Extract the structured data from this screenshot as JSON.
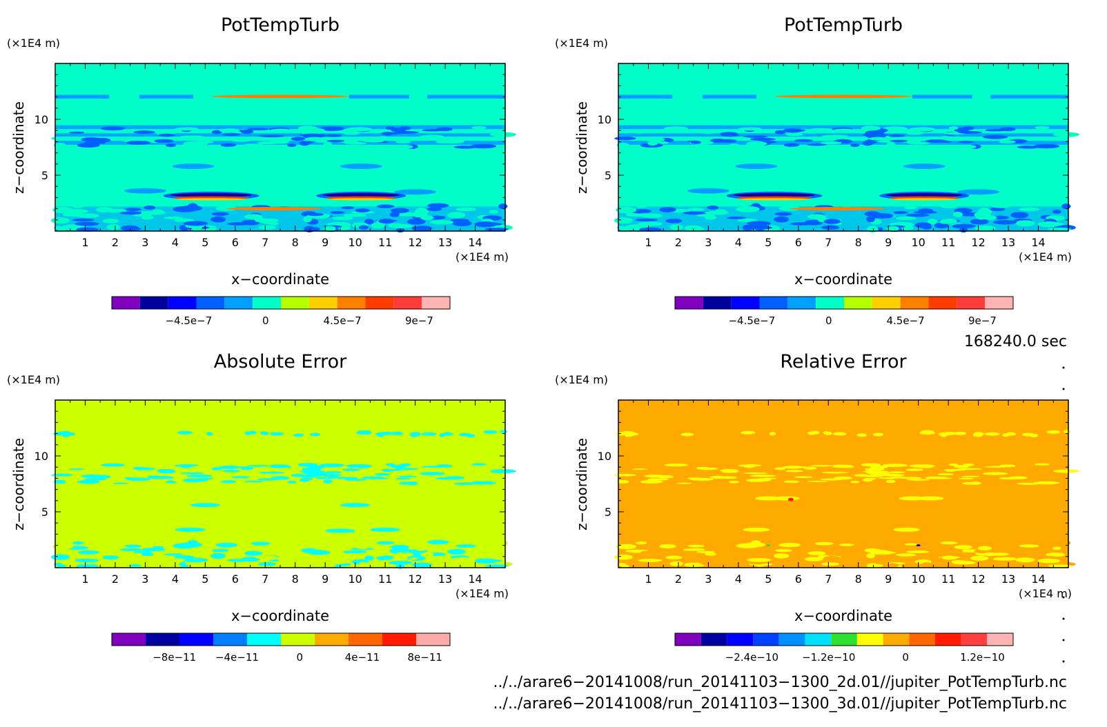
{
  "panels": [
    {
      "title": "PotTempTurb",
      "unit": "(×1E4 m)",
      "xlabel": "x−coordinate",
      "ylabel": "z−coordinate",
      "xunit": "(×1E4 m)",
      "field": "turb",
      "colorbar": {
        "colors": [
          "#7f00bf",
          "#00009f",
          "#0000ff",
          "#0060ff",
          "#00a0ff",
          "#00ffc8",
          "#b4ff00",
          "#ffd000",
          "#ff8000",
          "#ff3c00",
          "#ff3c3c",
          "#ffb4b4"
        ],
        "tick_labels": [
          "−4.5e−7",
          "0",
          "4.5e−7",
          "9e−7"
        ]
      }
    },
    {
      "title": "PotTempTurb",
      "unit": "(×1E4 m)",
      "xlabel": "x−coordinate",
      "ylabel": "z−coordinate",
      "xunit": "(×1E4 m)",
      "field": "turb",
      "colorbar": {
        "colors": [
          "#7f00bf",
          "#00009f",
          "#0000ff",
          "#0060ff",
          "#00a0ff",
          "#00ffc8",
          "#b4ff00",
          "#ffd000",
          "#ff8000",
          "#ff3c00",
          "#ff3c3c",
          "#ffb4b4"
        ],
        "tick_labels": [
          "−4.5e−7",
          "0",
          "4.5e−7",
          "9e−7"
        ]
      }
    },
    {
      "title": "Absolute Error",
      "unit": "(×1E4 m)",
      "xlabel": "x−coordinate",
      "ylabel": "z−coordinate",
      "xunit": "(×1E4 m)",
      "field": "abs",
      "colorbar": {
        "colors": [
          "#7f00bf",
          "#00009f",
          "#0000ff",
          "#0080ff",
          "#00ffff",
          "#ccff00",
          "#ffaa00",
          "#ff6600",
          "#ff1a00",
          "#ffaaaa"
        ],
        "tick_labels": [
          "−8e−11",
          "−4e−11",
          "0",
          "4e−11",
          "8e−11"
        ]
      }
    },
    {
      "title": "Relative Error",
      "unit": "(×1E4 m)",
      "xlabel": "x−coordinate",
      "ylabel": "z−coordinate",
      "xunit": "(×1E4 m)",
      "field": "rel",
      "colorbar": {
        "colors": [
          "#7f00bf",
          "#00009f",
          "#0000ff",
          "#0040ff",
          "#0090ff",
          "#00e0ff",
          "#30e030",
          "#ffff00",
          "#ffaa00",
          "#ff6600",
          "#ff1a00",
          "#ff4040",
          "#ffb4b4"
        ],
        "tick_labels": [
          "−2.4e−10",
          "−1.2e−10",
          "0",
          "1.2e−10"
        ]
      }
    }
  ],
  "time_label": "168240.0 sec",
  "file_1": "../../arare6−20141008/run_20141103−1300_2d.01//jupiter_PotTempTurb.nc",
  "file_2": "../../arare6−20141008/run_20141103−1300_3d.01//jupiter_PotTempTurb.nc",
  "chart_data": [
    {
      "type": "heatmap",
      "title": "PotTempTurb",
      "xlabel": "x−coordinate",
      "ylabel": "z−coordinate",
      "x_unit": "(×1E4 m)",
      "y_unit": "(×1E4 m)",
      "xlim": [
        0,
        15
      ],
      "ylim": [
        0,
        15
      ],
      "x_ticks": [
        1,
        2,
        3,
        4,
        5,
        6,
        7,
        8,
        9,
        10,
        11,
        12,
        13,
        14
      ],
      "y_ticks": [
        5,
        10
      ],
      "colorbar_ticks": [
        "−4.5e−7",
        "0",
        "4.5e−7",
        "9e−7"
      ],
      "background_value": 0,
      "features": [
        {
          "x": [
            3.6,
            6.8
          ],
          "z": [
            2.8,
            3.4
          ],
          "description": "strong negative/positive layer"
        },
        {
          "x": [
            8.7,
            11.7
          ],
          "z": [
            2.8,
            3.4
          ],
          "description": "strong negative/positive layer"
        },
        {
          "x": [
            5.2,
            9.8
          ],
          "z": [
            12.0,
            12.2
          ],
          "description": "weak positive layer"
        }
      ]
    },
    {
      "type": "heatmap",
      "title": "PotTempTurb",
      "xlabel": "x−coordinate",
      "ylabel": "z−coordinate",
      "x_unit": "(×1E4 m)",
      "y_unit": "(×1E4 m)",
      "xlim": [
        0,
        15
      ],
      "ylim": [
        0,
        15
      ],
      "x_ticks": [
        1,
        2,
        3,
        4,
        5,
        6,
        7,
        8,
        9,
        10,
        11,
        12,
        13,
        14
      ],
      "y_ticks": [
        5,
        10
      ],
      "colorbar_ticks": [
        "−4.5e−7",
        "0",
        "4.5e−7",
        "9e−7"
      ],
      "background_value": 0
    },
    {
      "type": "heatmap",
      "title": "Absolute Error",
      "xlabel": "x−coordinate",
      "ylabel": "z−coordinate",
      "x_unit": "(×1E4 m)",
      "y_unit": "(×1E4 m)",
      "xlim": [
        0,
        15
      ],
      "ylim": [
        0,
        15
      ],
      "x_ticks": [
        1,
        2,
        3,
        4,
        5,
        6,
        7,
        8,
        9,
        10,
        11,
        12,
        13,
        14
      ],
      "y_ticks": [
        5,
        10
      ],
      "colorbar_ticks": [
        "−8e−11",
        "−4e−11",
        "0",
        "4e−11",
        "8e−11"
      ],
      "background_value": 0
    },
    {
      "type": "heatmap",
      "title": "Relative Error",
      "xlabel": "x−coordinate",
      "ylabel": "z−coordinate",
      "x_unit": "(×1E4 m)",
      "y_unit": "(×1E4 m)",
      "xlim": [
        0,
        15
      ],
      "ylim": [
        0,
        15
      ],
      "x_ticks": [
        1,
        2,
        3,
        4,
        5,
        6,
        7,
        8,
        9,
        10,
        11,
        12,
        13,
        14
      ],
      "y_ticks": [
        5,
        10
      ],
      "colorbar_ticks": [
        "−2.4e−10",
        "−1.2e−10",
        "0",
        "1.2e−10"
      ],
      "background_value": 0
    }
  ]
}
